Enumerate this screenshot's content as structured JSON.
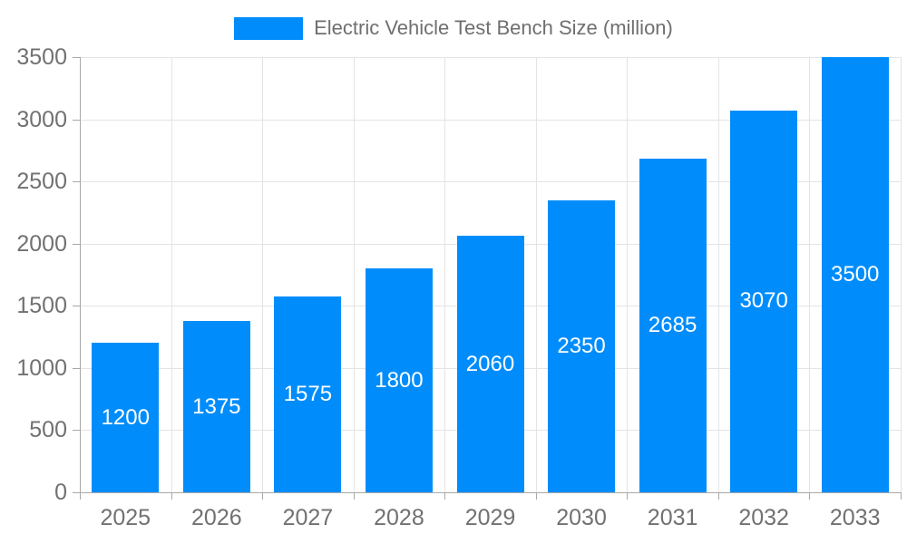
{
  "chart_data": {
    "type": "bar",
    "title": "Electric Vehicle Test Bench Size (million)",
    "legend_position": "top",
    "categories": [
      "2025",
      "2026",
      "2027",
      "2028",
      "2029",
      "2030",
      "2031",
      "2032",
      "2033"
    ],
    "values": [
      1200,
      1375,
      1575,
      1800,
      2060,
      2350,
      2685,
      3070,
      3500
    ],
    "value_labels_shown": true,
    "xlabel": "",
    "ylabel": "",
    "ylim": [
      0,
      3500
    ],
    "yticks": [
      0,
      500,
      1000,
      1500,
      2000,
      2500,
      3000,
      3500
    ],
    "grid": true,
    "colors": {
      "bar": "#008DFB",
      "value_label": "#ffffff",
      "axis_label": "#717171",
      "legend_label": "#6f6f6f",
      "gridline": "#e4e4e4",
      "axis_line": "#a8a8a8"
    }
  }
}
